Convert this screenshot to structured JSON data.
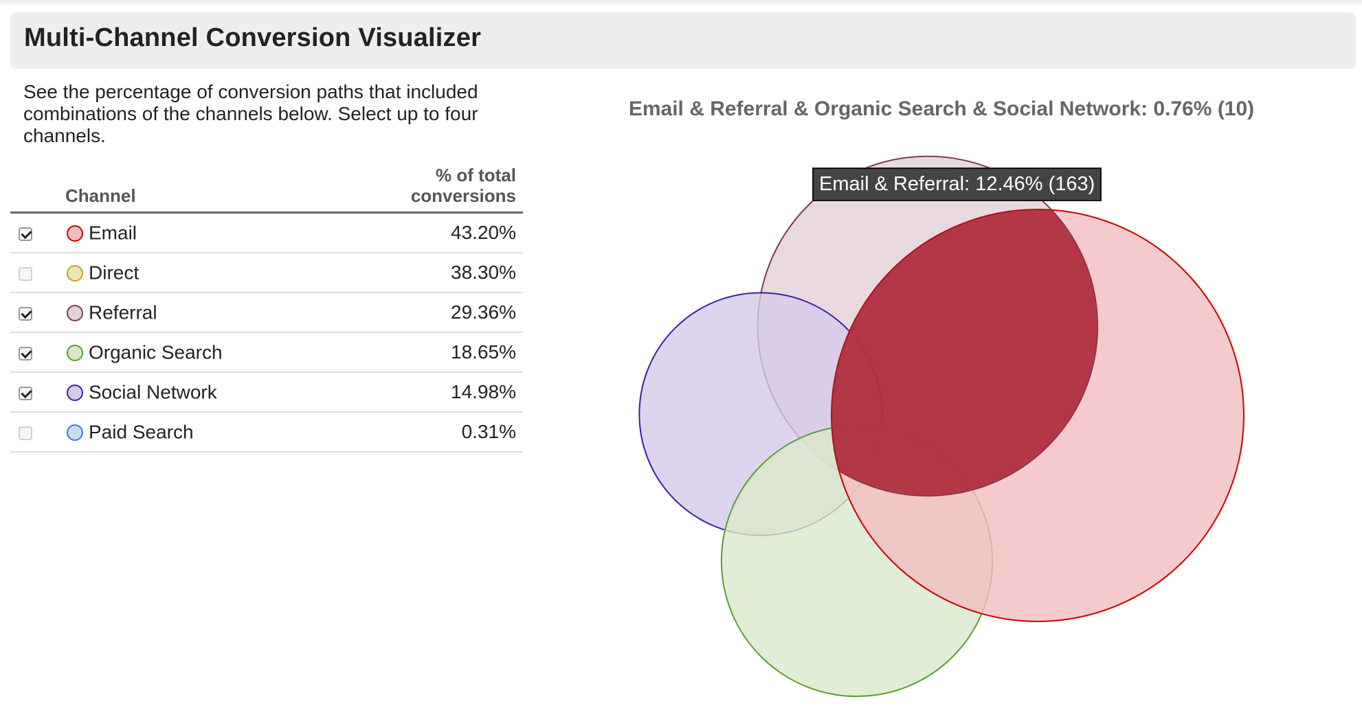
{
  "app": {
    "title": "Multi-Channel Conversion Visualizer"
  },
  "description": "See the percentage of conversion paths that included combinations of the channels below. Select up to four channels.",
  "table": {
    "header_channel": "Channel",
    "header_pct_line1": "% of total",
    "header_pct_line2": "conversions",
    "rows": [
      {
        "checked": true,
        "name": "Email",
        "pct": "43.20%",
        "fill": "#f2bdc1",
        "stroke": "#cc0000"
      },
      {
        "checked": false,
        "name": "Direct",
        "pct": "38.30%",
        "fill": "#f1e3b8",
        "stroke": "#c7a12a"
      },
      {
        "checked": true,
        "name": "Referral",
        "pct": "29.36%",
        "fill": "#e3d0d6",
        "stroke": "#7a3a50"
      },
      {
        "checked": true,
        "name": "Organic Search",
        "pct": "18.65%",
        "fill": "#d9e8c9",
        "stroke": "#58a030"
      },
      {
        "checked": true,
        "name": "Social Network",
        "pct": "14.98%",
        "fill": "#d6c9ea",
        "stroke": "#3a1fa6"
      },
      {
        "checked": false,
        "name": "Paid Search",
        "pct": "0.31%",
        "fill": "#c9dcf5",
        "stroke": "#3a7ad8"
      }
    ]
  },
  "chart_title": "Email & Referral & Organic Search & Social Network: 0.76% (10)",
  "tooltip": "Email & Referral: 12.46% (163)",
  "chart_data": {
    "type": "venn",
    "title": "Email & Referral & Organic Search & Social Network: 0.76% (10)",
    "sets": [
      {
        "name": "Email",
        "value": 43.2,
        "fill": "#f2bdc1",
        "stroke": "#cc0000"
      },
      {
        "name": "Referral",
        "value": 29.36,
        "fill": "#e3d0d6",
        "stroke": "#7a3a50"
      },
      {
        "name": "Organic Search",
        "value": 18.65,
        "fill": "#d9e8c9",
        "stroke": "#58a030"
      },
      {
        "name": "Social Network",
        "value": 14.98,
        "fill": "#d6c9ea",
        "stroke": "#3a1fa6"
      }
    ],
    "highlighted_intersection": {
      "sets": [
        "Email",
        "Referral"
      ],
      "percent": 12.46,
      "count": 163,
      "color": "#a5192b"
    },
    "all_four_intersection": {
      "percent": 0.76,
      "count": 10
    }
  }
}
